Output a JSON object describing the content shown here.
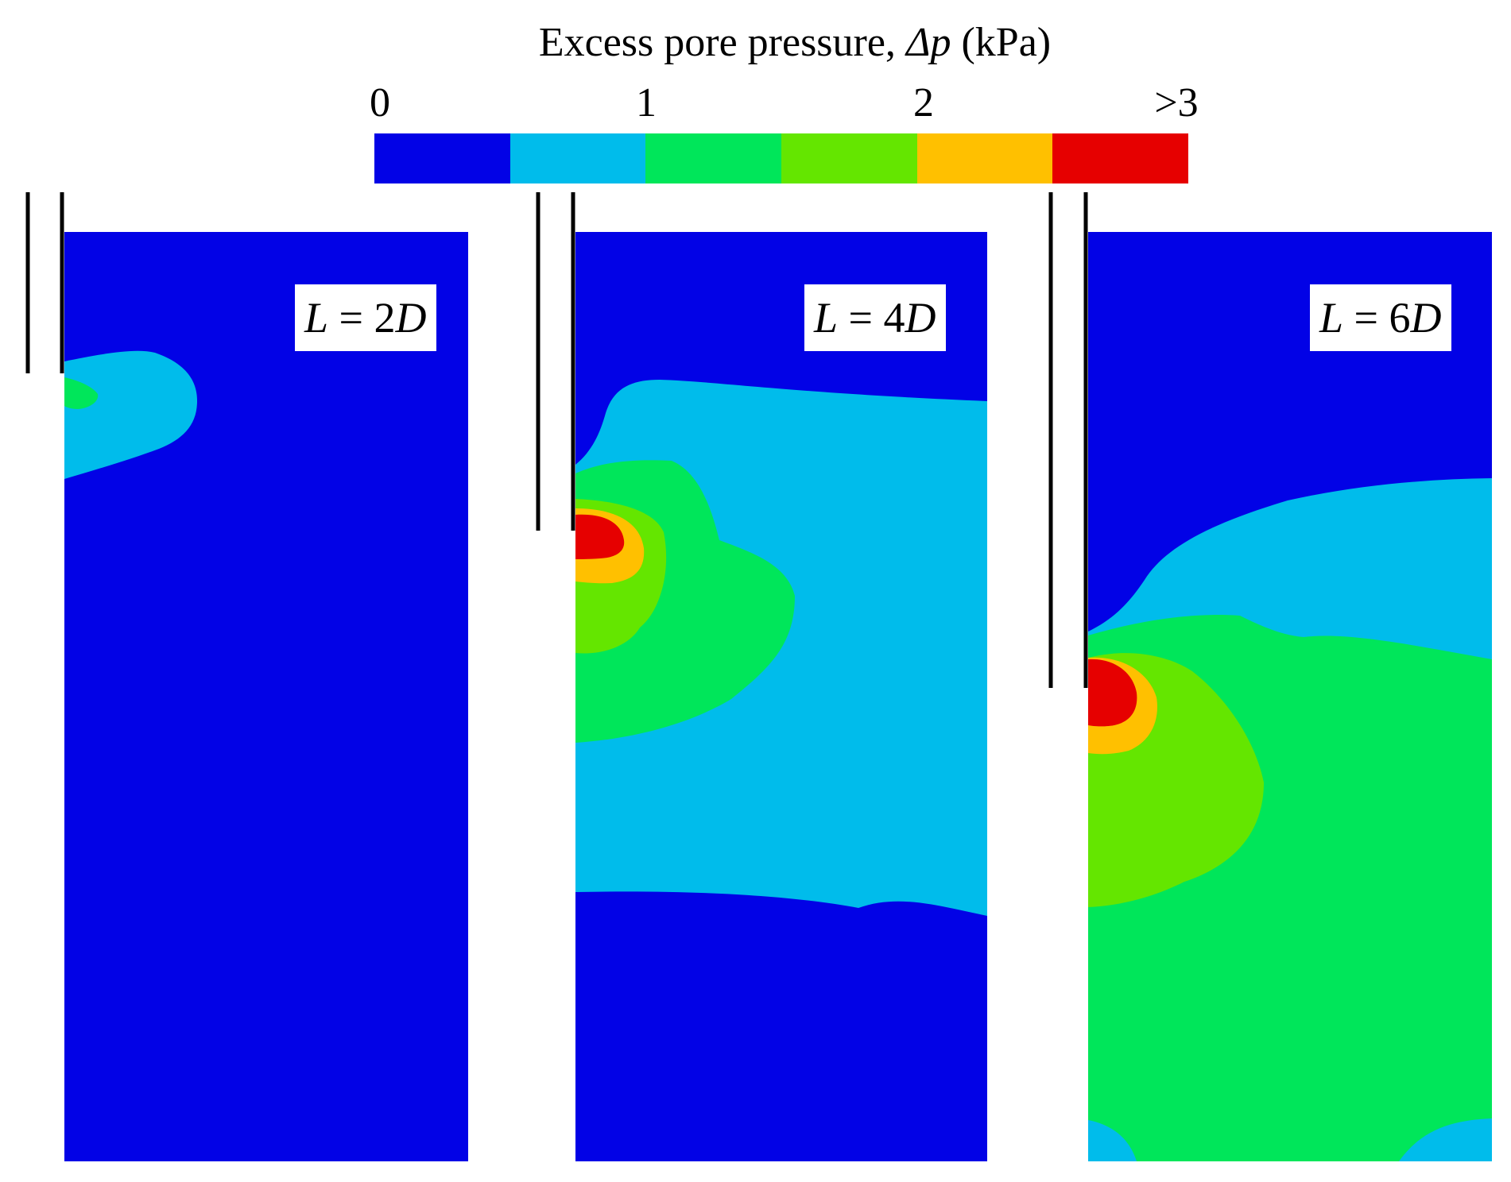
{
  "colorbar": {
    "title_text": "Excess pore pressure, ",
    "title_symbol": "Δp",
    "title_unit": " (kPa)",
    "ticks": [
      "0",
      "1",
      "2",
      ">3"
    ],
    "levels": [
      {
        "range": "0–0.5",
        "color": "#0202E6"
      },
      {
        "range": "0.5–1",
        "color": "#00BCEB"
      },
      {
        "range": "1–1.5",
        "color": "#00E65A"
      },
      {
        "range": "1.5–2",
        "color": "#64E600"
      },
      {
        "range": "2–2.5",
        "color": "#FFC000"
      },
      {
        "range": ">2.5",
        "color": "#E60000"
      }
    ]
  },
  "panels": [
    {
      "var": "L",
      "eq": " = ",
      "value": "2",
      "unit": "D"
    },
    {
      "var": "L",
      "eq": " = ",
      "value": "4",
      "unit": "D"
    },
    {
      "var": "L",
      "eq": " = ",
      "value": "6",
      "unit": "D"
    }
  ]
}
